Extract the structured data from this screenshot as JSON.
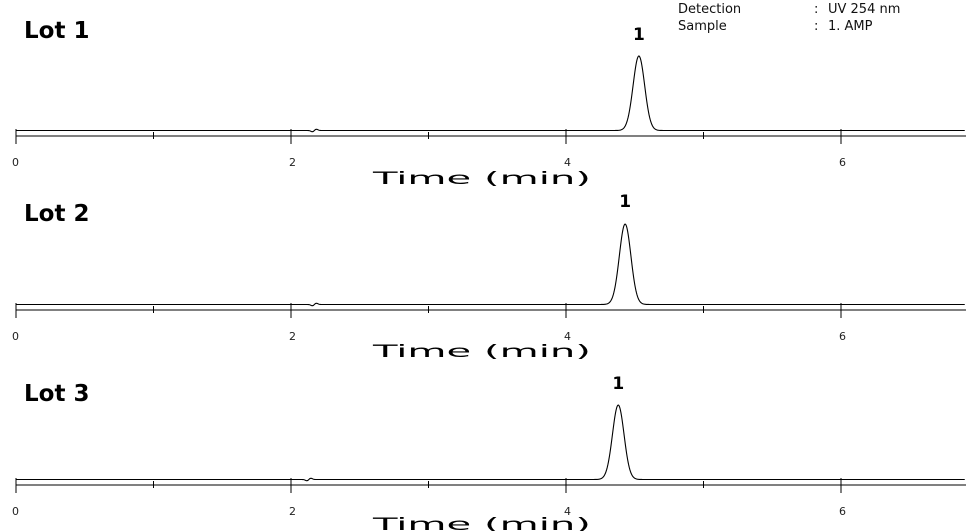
{
  "info": [
    {
      "label": "Detection",
      "colon": ":",
      "value": "UV 254 nm"
    },
    {
      "label": "Sample",
      "colon": ":",
      "value": "1. AMP"
    }
  ],
  "chart_data": [
    {
      "type": "line",
      "title": "Lot 1",
      "xlabel": "Time (min)",
      "xlim": [
        0,
        6.9
      ],
      "x_ticks": [
        0,
        1,
        2,
        3,
        4,
        5,
        6
      ],
      "x_tick_labels": [
        "0",
        "",
        "2",
        "",
        "4",
        "",
        "6"
      ],
      "baseline_disturbance_min": 2.17,
      "peaks": [
        {
          "label": "1",
          "retention_time_min": 4.53,
          "relative_height": 1.0
        }
      ]
    },
    {
      "type": "line",
      "title": "Lot 2",
      "xlabel": "Time (min)",
      "xlim": [
        0,
        6.9
      ],
      "x_ticks": [
        0,
        1,
        2,
        3,
        4,
        5,
        6
      ],
      "x_tick_labels": [
        "0",
        "",
        "2",
        "",
        "4",
        "",
        "6"
      ],
      "baseline_disturbance_min": 2.17,
      "peaks": [
        {
          "label": "1",
          "retention_time_min": 4.43,
          "relative_height": 1.08
        }
      ]
    },
    {
      "type": "line",
      "title": "Lot 3",
      "xlabel": "Time (min)",
      "xlim": [
        0,
        6.9
      ],
      "x_ticks": [
        0,
        1,
        2,
        3,
        4,
        5,
        6
      ],
      "x_tick_labels": [
        "0",
        "",
        "2",
        "",
        "4",
        "",
        "6"
      ],
      "baseline_disturbance_min": 2.13,
      "peaks": [
        {
          "label": "1",
          "retention_time_min": 4.38,
          "relative_height": 1.0
        }
      ]
    }
  ]
}
